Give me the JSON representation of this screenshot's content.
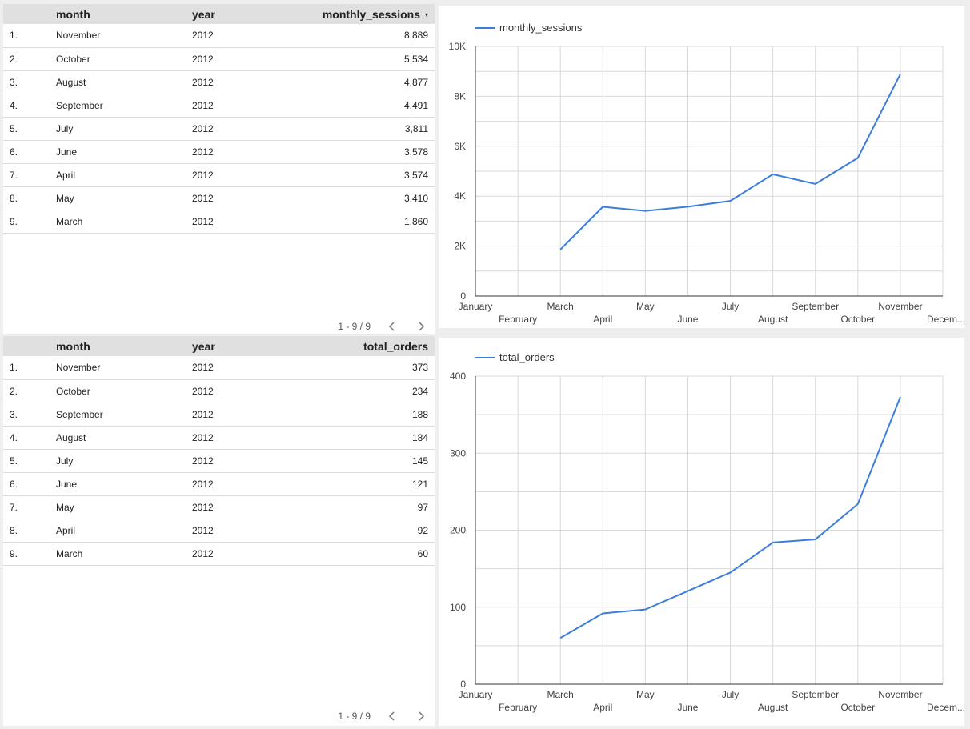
{
  "table_sessions": {
    "headers": {
      "index": "",
      "month": "month",
      "year": "year",
      "value": "monthly_sessions"
    },
    "sort_indicator": "▾",
    "rows": [
      {
        "idx": "1.",
        "month": "November",
        "year": "2012",
        "value": "8,889"
      },
      {
        "idx": "2.",
        "month": "October",
        "year": "2012",
        "value": "5,534"
      },
      {
        "idx": "3.",
        "month": "August",
        "year": "2012",
        "value": "4,877"
      },
      {
        "idx": "4.",
        "month": "September",
        "year": "2012",
        "value": "4,491"
      },
      {
        "idx": "5.",
        "month": "July",
        "year": "2012",
        "value": "3,811"
      },
      {
        "idx": "6.",
        "month": "June",
        "year": "2012",
        "value": "3,578"
      },
      {
        "idx": "7.",
        "month": "April",
        "year": "2012",
        "value": "3,574"
      },
      {
        "idx": "8.",
        "month": "May",
        "year": "2012",
        "value": "3,410"
      },
      {
        "idx": "9.",
        "month": "March",
        "year": "2012",
        "value": "1,860"
      }
    ],
    "pagination": "1 - 9 / 9"
  },
  "table_orders": {
    "headers": {
      "index": "",
      "month": "month",
      "year": "year",
      "value": "total_orders"
    },
    "rows": [
      {
        "idx": "1.",
        "month": "November",
        "year": "2012",
        "value": "373"
      },
      {
        "idx": "2.",
        "month": "October",
        "year": "2012",
        "value": "234"
      },
      {
        "idx": "3.",
        "month": "September",
        "year": "2012",
        "value": "188"
      },
      {
        "idx": "4.",
        "month": "August",
        "year": "2012",
        "value": "184"
      },
      {
        "idx": "5.",
        "month": "July",
        "year": "2012",
        "value": "145"
      },
      {
        "idx": "6.",
        "month": "June",
        "year": "2012",
        "value": "121"
      },
      {
        "idx": "7.",
        "month": "May",
        "year": "2012",
        "value": "97"
      },
      {
        "idx": "8.",
        "month": "April",
        "year": "2012",
        "value": "92"
      },
      {
        "idx": "9.",
        "month": "March",
        "year": "2012",
        "value": "60"
      }
    ],
    "pagination": "1 - 9 / 9"
  },
  "colors": {
    "line": "#3b7ddd",
    "grid": "#d9d9d9",
    "axis": "#333333",
    "header_bg": "#e0e0e0"
  },
  "chart_data": [
    {
      "type": "line",
      "categories": [
        "January",
        "February",
        "March",
        "April",
        "May",
        "June",
        "July",
        "August",
        "September",
        "October",
        "November",
        "December"
      ],
      "tick_labels": [
        "January",
        "February",
        "March",
        "April",
        "May",
        "June",
        "July",
        "August",
        "September",
        "October",
        "November",
        "Decem..."
      ],
      "series": [
        {
          "name": "monthly_sessions",
          "values": [
            null,
            null,
            1860,
            3574,
            3410,
            3578,
            3811,
            4877,
            4491,
            5534,
            8889,
            null
          ]
        }
      ],
      "ylim": [
        0,
        10000
      ],
      "y_ticks": [
        0,
        2000,
        4000,
        6000,
        8000,
        10000
      ],
      "y_tick_labels": [
        "0",
        "2K",
        "4K",
        "6K",
        "8K",
        "10K"
      ],
      "grid": true,
      "legend_position": "top-left"
    },
    {
      "type": "line",
      "categories": [
        "January",
        "February",
        "March",
        "April",
        "May",
        "June",
        "July",
        "August",
        "September",
        "October",
        "November",
        "December"
      ],
      "tick_labels": [
        "January",
        "February",
        "March",
        "April",
        "May",
        "June",
        "July",
        "August",
        "September",
        "October",
        "November",
        "Decem..."
      ],
      "series": [
        {
          "name": "total_orders",
          "values": [
            null,
            null,
            60,
            92,
            97,
            121,
            145,
            184,
            188,
            234,
            373,
            null
          ]
        }
      ],
      "ylim": [
        0,
        400
      ],
      "y_ticks": [
        0,
        100,
        200,
        300,
        400
      ],
      "y_tick_labels": [
        "0",
        "100",
        "200",
        "300",
        "400"
      ],
      "grid": true,
      "legend_position": "top-left"
    }
  ]
}
